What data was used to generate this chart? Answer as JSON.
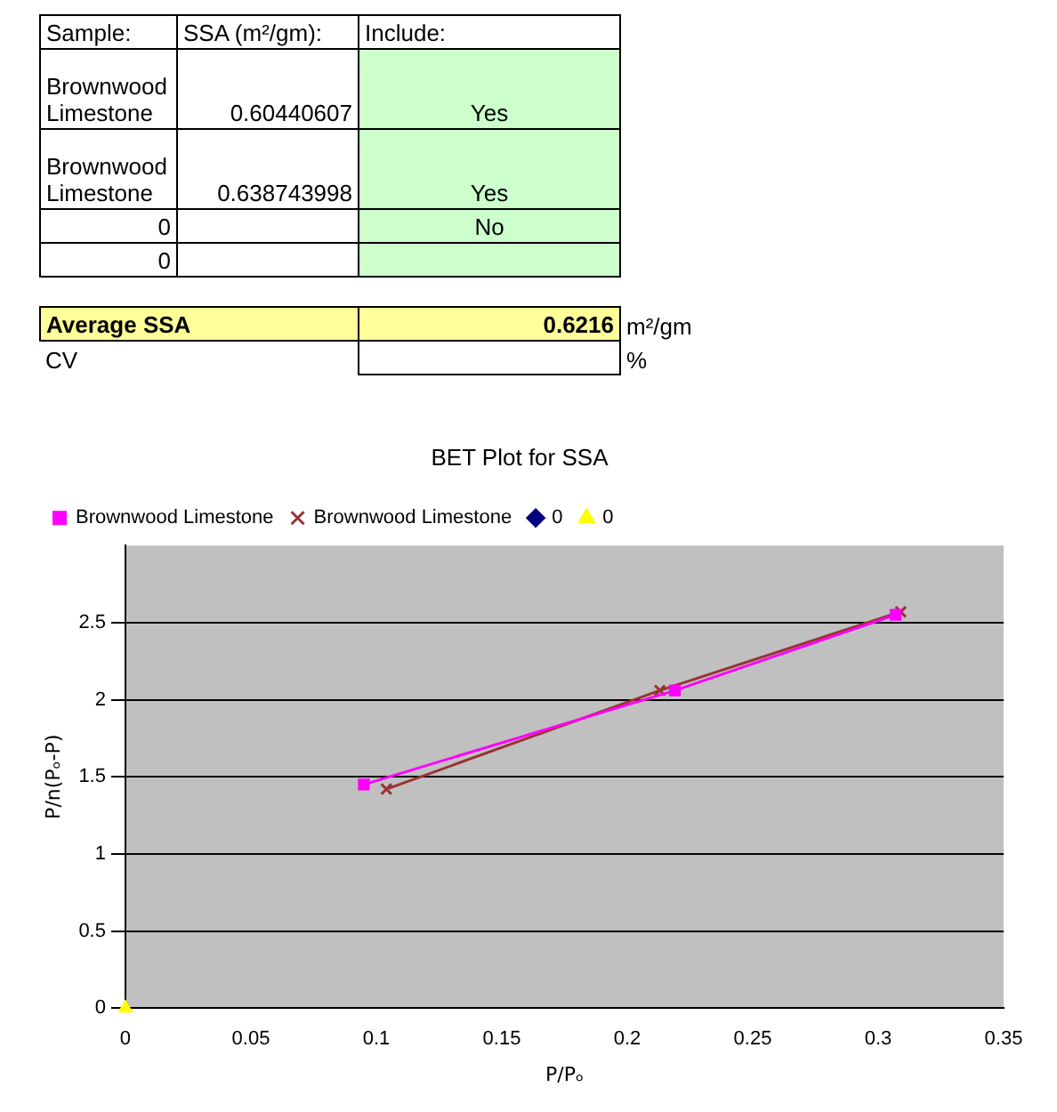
{
  "chart_data": [
    {
      "type": "other",
      "annotations": [
        "Sample:",
        "SSA (m²/gm):",
        "Include:",
        "Brownwood Limestone",
        "0.60440607",
        "Yes",
        "Brownwood Limestone",
        "0.638743998",
        "Yes",
        "0",
        "No",
        "0",
        "Average SSA",
        "0.6216",
        "m²/gm",
        "CV",
        "%"
      ]
    },
    {
      "type": "line",
      "title": "BET Plot for SSA",
      "xlabel": "P/Pₒ",
      "ylabel": "P/n(Pₒ-P)",
      "xlim": [
        0,
        0.35
      ],
      "xticks": [
        0,
        0.05,
        0.1,
        0.15,
        0.2,
        0.25,
        0.3,
        0.35
      ],
      "ylim": [
        0,
        3
      ],
      "yticks": [
        0,
        0.5,
        1,
        1.5,
        2,
        2.5
      ],
      "grid": "y",
      "legend": "top left",
      "line_style": "solid",
      "series": [
        {
          "name": "Brownwood Limestone",
          "type": "line",
          "marker": "square",
          "color": "#ff00ff",
          "x": [
            0.095,
            0.219,
            0.307
          ],
          "values": [
            1.45,
            2.06,
            2.55
          ]
        },
        {
          "name": "Brownwood Limestone",
          "type": "line",
          "marker": "cross",
          "color": "#993333",
          "x": [
            0.104,
            0.213,
            0.309
          ],
          "values": [
            1.42,
            2.06,
            2.57
          ]
        },
        {
          "name": "0",
          "type": "scatter",
          "marker": "diamond",
          "color": "#000080"
        },
        {
          "name": "0",
          "type": "scatter",
          "marker": "triangle",
          "color": "#ffff00",
          "x": [
            0
          ],
          "values": [
            0
          ]
        }
      ]
    }
  ]
}
